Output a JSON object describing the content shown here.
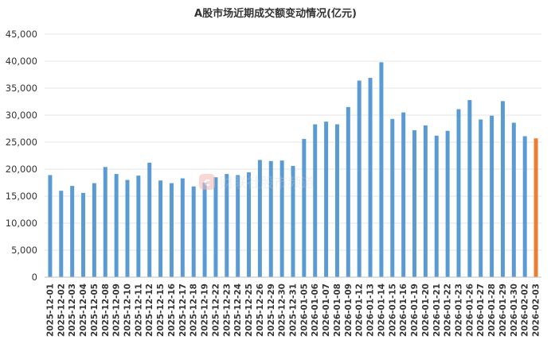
{
  "chart_data": {
    "type": "bar",
    "title": "A股市场近期成交额变动情况(亿元)",
    "xlabel": "",
    "ylabel": "",
    "ylim": [
      0,
      45000
    ],
    "yticks": [
      "0",
      "5,000",
      "10,000",
      "15,000",
      "20,000",
      "25,000",
      "30,000",
      "35,000",
      "40,000",
      "45,000"
    ],
    "grid": true,
    "legend": "none",
    "colors": {
      "default": "#5b9bd5",
      "highlight": "#ed7d31"
    },
    "highlight_last": true,
    "categories": [
      "2025-12-01",
      "2025-12-02",
      "2025-12-03",
      "2025-12-04",
      "2025-12-05",
      "2025-12-08",
      "2025-12-09",
      "2025-12-10",
      "2025-12-11",
      "2025-12-12",
      "2025-12-15",
      "2025-12-16",
      "2025-12-17",
      "2025-12-18",
      "2025-12-19",
      "2025-12-22",
      "2025-12-23",
      "2025-12-24",
      "2025-12-25",
      "2025-12-26",
      "2025-12-29",
      "2025-12-30",
      "2025-12-31",
      "2026-01-05",
      "2026-01-06",
      "2026-01-07",
      "2026-01-08",
      "2026-01-09",
      "2026-01-12",
      "2026-01-13",
      "2026-01-14",
      "2026-01-15",
      "2026-01-16",
      "2026-01-19",
      "2026-01-20",
      "2026-01-21",
      "2026-01-22",
      "2026-01-23",
      "2026-01-26",
      "2026-01-27",
      "2026-01-28",
      "2026-01-29",
      "2026-01-30",
      "2026-02-02",
      "2026-02-03"
    ],
    "values": [
      18900,
      16000,
      16900,
      15600,
      17400,
      20400,
      19100,
      18000,
      18800,
      21200,
      17900,
      17400,
      18300,
      16800,
      17500,
      18500,
      19100,
      18900,
      19400,
      21700,
      21500,
      21600,
      20600,
      25600,
      28300,
      28800,
      28300,
      31500,
      36400,
      36900,
      39800,
      29300,
      30500,
      27200,
      28100,
      26200,
      27100,
      31100,
      32800,
      29200,
      29900,
      32600,
      28600,
      26100,
      25700
    ]
  },
  "watermark": {
    "logo_char": "c",
    "text": "财联社股市频道"
  }
}
